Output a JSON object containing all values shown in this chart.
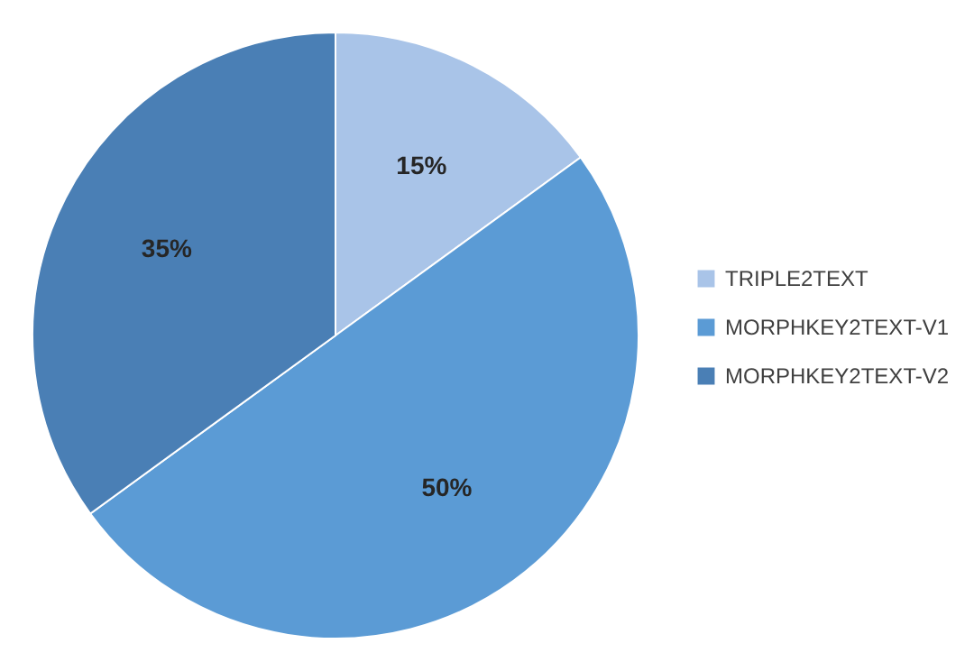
{
  "chart_data": {
    "type": "pie",
    "categories": [
      "TRIPLE2TEXT",
      "MORPHKEY2TEXT-V1",
      "MORPHKEY2TEXT-V2"
    ],
    "values": [
      15,
      50,
      35
    ],
    "colors": [
      "#a9c4e8",
      "#5b9bd5",
      "#4a7fb5"
    ],
    "value_labels": [
      "15%",
      "50%",
      "35%"
    ],
    "legend": "right"
  }
}
